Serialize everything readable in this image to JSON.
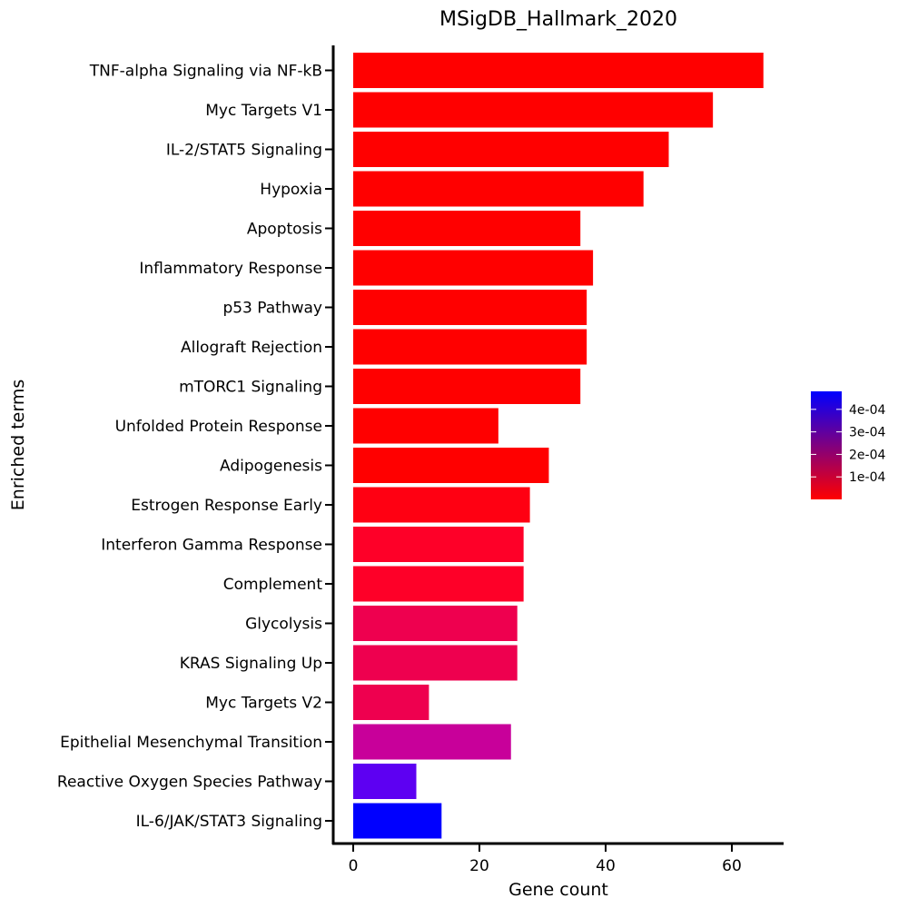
{
  "chart_data": {
    "type": "bar",
    "orientation": "horizontal",
    "title": "MSigDB_Hallmark_2020",
    "xlabel": "Gene count",
    "ylabel": "Enriched terms",
    "xlim": [
      -3,
      68
    ],
    "xticks": [
      0,
      20,
      40,
      60
    ],
    "grid": false,
    "legend_position": "right",
    "legend": {
      "type": "colorbar",
      "range": [
        0,
        0.00048
      ],
      "tick_values": [
        0.0001,
        0.0002,
        0.0003,
        0.0004
      ],
      "tick_labels": [
        "1e-04",
        "2e-04",
        "3e-04",
        "4e-04"
      ],
      "color_low": "#ff0000",
      "color_high": "#0000ff"
    },
    "categories": [
      "TNF-alpha Signaling via NF-kB",
      "Myc Targets V1",
      "IL-2/STAT5 Signaling",
      "Hypoxia",
      "Apoptosis",
      "Inflammatory Response",
      "p53 Pathway",
      "Allograft Rejection",
      "mTORC1 Signaling",
      "Unfolded Protein Response",
      "Adipogenesis",
      "Estrogen Response Early",
      "Interferon Gamma Response",
      "Complement",
      "Glycolysis",
      "KRAS Signaling Up",
      "Myc Targets V2",
      "Epithelial Mesenchymal Transition",
      "Reactive Oxygen Species Pathway",
      "IL-6/JAK/STAT3 Signaling"
    ],
    "values": [
      65,
      57,
      50,
      46,
      36,
      38,
      37,
      37,
      36,
      23,
      31,
      28,
      27,
      27,
      26,
      26,
      12,
      25,
      10,
      14
    ],
    "colors": [
      "#ff0000",
      "#ff0000",
      "#ff0000",
      "#ff0000",
      "#ff0000",
      "#ff0000",
      "#ff0000",
      "#ff0000",
      "#ff0000",
      "#ff0000",
      "#ff0000",
      "#ff0012",
      "#fe0028",
      "#fe0028",
      "#ee004f",
      "#ee004f",
      "#ee004f",
      "#c8009a",
      "#5d00f2",
      "#0000ff"
    ]
  }
}
